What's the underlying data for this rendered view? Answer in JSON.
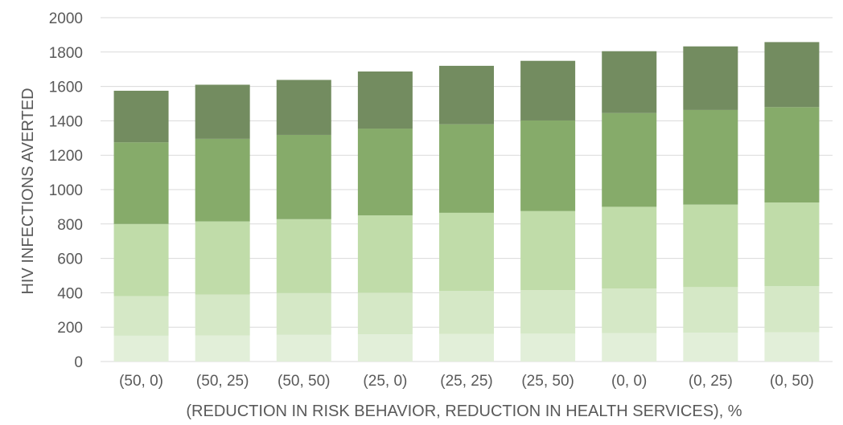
{
  "chart_data": {
    "type": "bar",
    "stacked": true,
    "xlabel": "(REDUCTION IN RISK BEHAVIOR, REDUCTION IN HEALTH SERVICES), %",
    "ylabel": "HIV INFECTIONS AVERTED",
    "ylim": [
      0,
      2000
    ],
    "yticks": [
      0,
      200,
      400,
      600,
      800,
      1000,
      1200,
      1400,
      1600,
      1800,
      2000
    ],
    "grid": true,
    "categories": [
      "(50, 0)",
      "(50, 25)",
      "(50, 50)",
      "(25, 0)",
      "(25, 25)",
      "(25, 50)",
      "(0, 0)",
      "(0, 25)",
      "(0, 50)"
    ],
    "series": [
      {
        "color": "#e2efd9",
        "values": [
          150,
          152,
          155,
          158,
          160,
          162,
          165,
          168,
          170
        ]
      },
      {
        "color": "#d5e8c6",
        "values": [
          230,
          238,
          243,
          242,
          250,
          253,
          260,
          265,
          268
        ]
      },
      {
        "color": "#c0dca9",
        "values": [
          420,
          425,
          430,
          450,
          455,
          460,
          475,
          480,
          487
        ]
      },
      {
        "color": "#86ab6a",
        "values": [
          475,
          480,
          490,
          505,
          515,
          527,
          545,
          550,
          555
        ]
      },
      {
        "color": "#738c60",
        "values": [
          300,
          315,
          320,
          332,
          340,
          347,
          360,
          370,
          378
        ]
      }
    ]
  }
}
